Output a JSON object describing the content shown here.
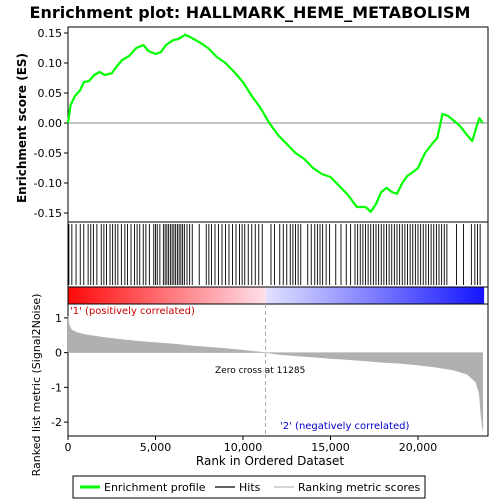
{
  "chart_data": {
    "type": "line",
    "title": "Enrichment plot: HALLMARK_HEME_METABOLISM",
    "xlabel": "Rank in Ordered Dataset",
    "ylabel_top": "Enrichment score (ES)",
    "ylabel_bottom": "Ranked list metric (Signal2Noise)",
    "xlim": [
      0,
      24000
    ],
    "x_ticks": [
      0,
      5000,
      10000,
      15000,
      20000
    ],
    "x_tick_labels": [
      "0",
      "5,000",
      "10,000",
      "15,000",
      "20,000"
    ],
    "es_ylim": [
      -0.165,
      0.16
    ],
    "es_ticks": [
      0.15,
      0.1,
      0.05,
      0.0,
      -0.05,
      -0.1,
      -0.15
    ],
    "es_tick_labels": [
      "0.15",
      "0.10",
      "0.05",
      "0.00",
      "-0.05",
      "-0.10",
      "-0.15"
    ],
    "metric_ylim": [
      -2.4,
      1.4
    ],
    "metric_ticks": [
      1,
      0,
      -1,
      -2
    ],
    "metric_tick_labels": [
      "1",
      "0",
      "-1",
      "-2"
    ],
    "zero_cross_rank": 11285,
    "zero_cross_label": "Zero cross at 11285",
    "positive_label": "'1' (positively correlated)",
    "negative_label": "'2' (negatively correlated)",
    "es_curve": [
      [
        0,
        0.0
      ],
      [
        150,
        0.03
      ],
      [
        400,
        0.045
      ],
      [
        700,
        0.055
      ],
      [
        900,
        0.068
      ],
      [
        1200,
        0.07
      ],
      [
        1500,
        0.08
      ],
      [
        1800,
        0.085
      ],
      [
        2100,
        0.08
      ],
      [
        2500,
        0.083
      ],
      [
        2800,
        0.095
      ],
      [
        3100,
        0.105
      ],
      [
        3500,
        0.112
      ],
      [
        3900,
        0.125
      ],
      [
        4300,
        0.13
      ],
      [
        4600,
        0.12
      ],
      [
        5000,
        0.115
      ],
      [
        5300,
        0.118
      ],
      [
        5600,
        0.13
      ],
      [
        6000,
        0.138
      ],
      [
        6300,
        0.14
      ],
      [
        6700,
        0.147
      ],
      [
        7000,
        0.143
      ],
      [
        7300,
        0.138
      ],
      [
        7600,
        0.133
      ],
      [
        8000,
        0.125
      ],
      [
        8500,
        0.11
      ],
      [
        9000,
        0.1
      ],
      [
        9500,
        0.085
      ],
      [
        10000,
        0.068
      ],
      [
        10500,
        0.045
      ],
      [
        11000,
        0.025
      ],
      [
        11500,
        0.0
      ],
      [
        12000,
        -0.02
      ],
      [
        12500,
        -0.035
      ],
      [
        13000,
        -0.05
      ],
      [
        13500,
        -0.06
      ],
      [
        14000,
        -0.075
      ],
      [
        14500,
        -0.085
      ],
      [
        15000,
        -0.09
      ],
      [
        15500,
        -0.105
      ],
      [
        16000,
        -0.12
      ],
      [
        16500,
        -0.14
      ],
      [
        17000,
        -0.14
      ],
      [
        17300,
        -0.148
      ],
      [
        17600,
        -0.135
      ],
      [
        17900,
        -0.115
      ],
      [
        18200,
        -0.108
      ],
      [
        18500,
        -0.115
      ],
      [
        18800,
        -0.118
      ],
      [
        19100,
        -0.1
      ],
      [
        19400,
        -0.088
      ],
      [
        19700,
        -0.082
      ],
      [
        20000,
        -0.075
      ],
      [
        20400,
        -0.05
      ],
      [
        20800,
        -0.035
      ],
      [
        21100,
        -0.025
      ],
      [
        21400,
        0.015
      ],
      [
        21700,
        0.012
      ],
      [
        22000,
        0.005
      ],
      [
        22400,
        -0.005
      ],
      [
        22800,
        -0.02
      ],
      [
        23100,
        -0.03
      ],
      [
        23300,
        -0.01
      ],
      [
        23500,
        0.008
      ],
      [
        23700,
        0.0
      ]
    ],
    "hits_positive_region": [
      50,
      220,
      460,
      700,
      900,
      1150,
      1300,
      1450,
      1650,
      1900,
      2050,
      2200,
      2400,
      2550,
      2700,
      2850,
      3050,
      3250,
      3400,
      3600,
      3800,
      3950,
      4100,
      4300,
      4450,
      4650,
      4900,
      5000,
      5100,
      5250,
      5450,
      5550,
      5650,
      5750,
      5850,
      5950,
      6050,
      6150,
      6250,
      6350,
      6450,
      6550,
      6650,
      6800,
      6950,
      7100,
      7500,
      7900,
      8050,
      8200,
      8400,
      8600,
      8800,
      9000,
      9200,
      9400,
      9600,
      9800,
      9950,
      10100,
      10300,
      10500,
      10700,
      10900,
      11100
    ],
    "hits_negative_region": [
      11600,
      11800,
      12100,
      12300,
      12500,
      12700,
      12850,
      13000,
      13150,
      13300,
      13700,
      13900,
      14100,
      14250,
      14400,
      14550,
      14750,
      14950,
      15300,
      15600,
      15900,
      16150,
      16400,
      16550,
      16700,
      16850,
      17000,
      17150,
      17300,
      17450,
      17600,
      17750,
      17900,
      18050,
      18200,
      18350,
      18500,
      18650,
      18800,
      18950,
      19100,
      19250,
      19400,
      19550,
      19700,
      19850,
      20000,
      20150,
      20300,
      20450,
      20600,
      20750,
      20900,
      21050,
      21200,
      21350,
      21500,
      21650,
      22200,
      22600,
      23050,
      23250,
      23400,
      23550
    ],
    "metric_shape": [
      [
        0,
        1.05
      ],
      [
        50,
        0.82
      ],
      [
        200,
        0.66
      ],
      [
        500,
        0.58
      ],
      [
        1000,
        0.52
      ],
      [
        2000,
        0.44
      ],
      [
        3000,
        0.38
      ],
      [
        4000,
        0.33
      ],
      [
        5000,
        0.29
      ],
      [
        6000,
        0.25
      ],
      [
        7000,
        0.2
      ],
      [
        8000,
        0.16
      ],
      [
        9000,
        0.12
      ],
      [
        10000,
        0.07
      ],
      [
        11285,
        0.0
      ],
      [
        12000,
        -0.05
      ],
      [
        13000,
        -0.09
      ],
      [
        14000,
        -0.13
      ],
      [
        15000,
        -0.17
      ],
      [
        16000,
        -0.2
      ],
      [
        17000,
        -0.24
      ],
      [
        18000,
        -0.28
      ],
      [
        19000,
        -0.31
      ],
      [
        20000,
        -0.36
      ],
      [
        21000,
        -0.42
      ],
      [
        22000,
        -0.5
      ],
      [
        22800,
        -0.62
      ],
      [
        23300,
        -0.85
      ],
      [
        23500,
        -1.2
      ],
      [
        23600,
        -1.8
      ],
      [
        23700,
        -2.25
      ]
    ],
    "legend": [
      {
        "label": "Enrichment profile",
        "color": "#00ff00",
        "style": "thick-line"
      },
      {
        "label": "Hits",
        "color": "#000000",
        "style": "line"
      },
      {
        "label": "Ranking metric scores",
        "color": "#bbbbbb",
        "style": "line"
      }
    ],
    "colors": {
      "es_line": "#00ff00",
      "hit": "#000000",
      "metric_fill": "#b0b0b0",
      "positive": "#ff0000",
      "negative": "#0000ff",
      "zero_line": "#aaaaaa",
      "positive_label": "#cc0000",
      "negative_label": "#0000cc"
    }
  }
}
